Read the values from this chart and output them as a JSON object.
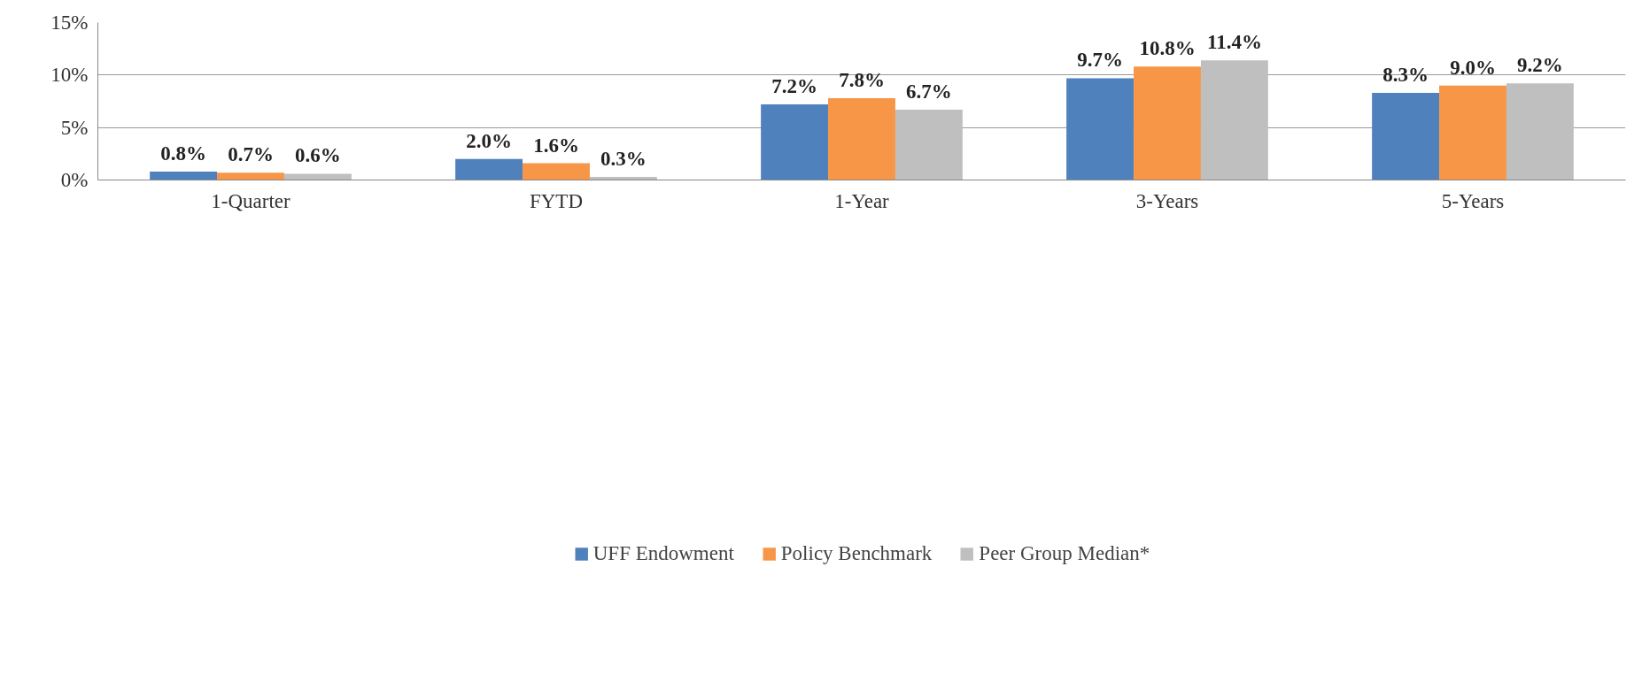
{
  "chart_data": {
    "type": "bar",
    "categories": [
      "1-Quarter",
      "FYTD",
      "1-Year",
      "3-Years",
      "5-Years"
    ],
    "series": [
      {
        "name": "UFF Endowment",
        "color": "#4f81bd",
        "values": [
          0.8,
          2.0,
          7.2,
          9.7,
          8.3
        ],
        "value_labels": [
          "0.8%",
          "2.0%",
          "7.2%",
          "9.7%",
          "8.3%"
        ]
      },
      {
        "name": "Policy Benchmark",
        "color": "#f79646",
        "values": [
          0.7,
          1.6,
          7.8,
          10.8,
          9.0
        ],
        "value_labels": [
          "0.7%",
          "1.6%",
          "7.8%",
          "10.8%",
          "9.0%"
        ]
      },
      {
        "name": "Peer Group Median*",
        "color": "#bfbfbf",
        "values": [
          0.6,
          0.3,
          6.7,
          11.4,
          9.2
        ],
        "value_labels": [
          "0.6%",
          "0.3%",
          "6.7%",
          "11.4%",
          "9.2%"
        ]
      }
    ],
    "ylim": [
      0,
      15
    ],
    "yticks": [
      {
        "value": 0,
        "label": "0%"
      },
      {
        "value": 5,
        "label": "5%"
      },
      {
        "value": 10,
        "label": "10%"
      },
      {
        "value": 15,
        "label": "15%"
      }
    ],
    "grid": "y",
    "legend": "bottom"
  }
}
